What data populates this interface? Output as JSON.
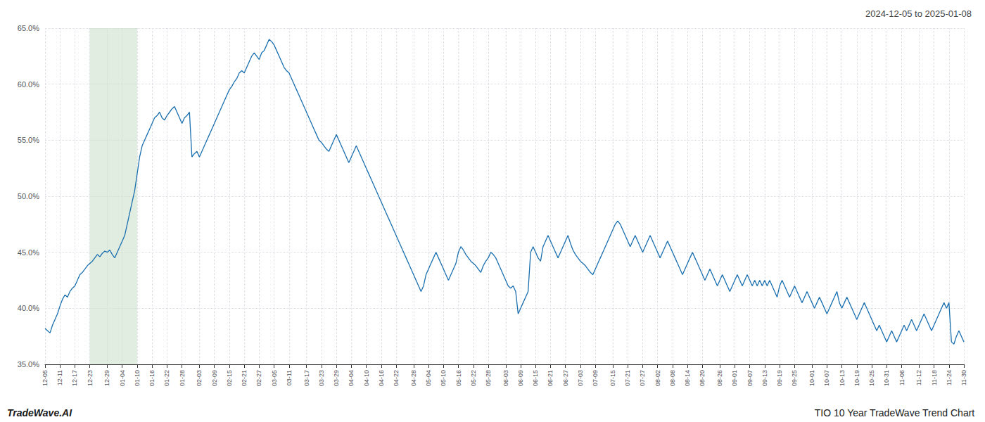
{
  "chart_data": {
    "type": "line",
    "title": "2024-12-05 to 2025-01-08",
    "footer_left": "TradeWave.AI",
    "footer_right": "TIO 10 Year TradeWave Trend Chart",
    "color": "#1a6faf",
    "grid": true,
    "ylim": [
      35.0,
      65.0
    ],
    "yticks": [
      {
        "value": 35,
        "label": "35.0%"
      },
      {
        "value": 40,
        "label": "40.0%"
      },
      {
        "value": 45,
        "label": "45.0%"
      },
      {
        "value": 50,
        "label": "50.0%"
      },
      {
        "value": 55,
        "label": "55.0%"
      },
      {
        "value": 60,
        "label": "60.0%"
      },
      {
        "value": 65,
        "label": "65.0%"
      }
    ],
    "shaded_range": {
      "from": "12-23",
      "to": "01-10",
      "color": "#c8dfc8"
    },
    "categories": [
      "12-05",
      null,
      null,
      null,
      null,
      null,
      "12-11",
      null,
      null,
      null,
      null,
      null,
      "12-17",
      null,
      null,
      null,
      null,
      null,
      "12-23",
      null,
      null,
      null,
      null,
      null,
      null,
      "12-29",
      null,
      null,
      null,
      null,
      null,
      "01-04",
      null,
      null,
      null,
      null,
      null,
      "01-10",
      null,
      null,
      null,
      null,
      null,
      "01-16",
      null,
      null,
      null,
      null,
      null,
      "01-22",
      null,
      null,
      null,
      null,
      null,
      "01-28",
      null,
      null,
      null,
      null,
      null,
      null,
      "02-03",
      null,
      null,
      null,
      null,
      null,
      "02-09",
      null,
      null,
      null,
      null,
      null,
      "02-15",
      null,
      null,
      null,
      null,
      null,
      "02-21",
      null,
      null,
      null,
      null,
      null,
      "02-27",
      null,
      null,
      null,
      null,
      null,
      "03-05",
      null,
      null,
      null,
      null,
      null,
      "03-11",
      null,
      null,
      null,
      null,
      null,
      null,
      "03-17",
      null,
      null,
      null,
      null,
      null,
      "03-23",
      null,
      null,
      null,
      null,
      null,
      "03-29",
      null,
      null,
      null,
      null,
      null,
      "04-04",
      null,
      null,
      null,
      null,
      null,
      "04-10",
      null,
      null,
      null,
      null,
      null,
      "04-16",
      null,
      null,
      null,
      null,
      null,
      "04-22",
      null,
      null,
      null,
      null,
      null,
      null,
      "04-28",
      null,
      null,
      null,
      null,
      null,
      "05-04",
      null,
      null,
      null,
      null,
      null,
      "05-10",
      null,
      null,
      null,
      null,
      null,
      "05-16",
      null,
      null,
      null,
      null,
      null,
      "05-22",
      null,
      null,
      null,
      null,
      null,
      "05-28",
      null,
      null,
      null,
      null,
      null,
      null,
      "06-03",
      null,
      null,
      null,
      null,
      null,
      "06-09",
      null,
      null,
      null,
      null,
      null,
      "06-15",
      null,
      null,
      null,
      null,
      null,
      "06-21",
      null,
      null,
      null,
      null,
      null,
      "06-27",
      null,
      null,
      null,
      null,
      null,
      "07-03",
      null,
      null,
      null,
      null,
      null,
      "07-09",
      null,
      null,
      null,
      null,
      null,
      null,
      "07-15",
      null,
      null,
      null,
      null,
      null,
      "07-21",
      null,
      null,
      null,
      null,
      null,
      "07-27",
      null,
      null,
      null,
      null,
      null,
      "08-02",
      null,
      null,
      null,
      null,
      null,
      "08-08",
      null,
      null,
      null,
      null,
      null,
      "08-14",
      null,
      null,
      null,
      null,
      null,
      "08-20",
      null,
      null,
      null,
      null,
      null,
      null,
      "08-26",
      null,
      null,
      null,
      null,
      null,
      "09-01",
      null,
      null,
      null,
      null,
      null,
      "09-07",
      null,
      null,
      null,
      null,
      null,
      "09-13",
      null,
      null,
      null,
      null,
      null,
      "09-19",
      null,
      null,
      null,
      null,
      null,
      "09-25",
      null,
      null,
      null,
      null,
      null,
      null,
      "10-01",
      null,
      null,
      null,
      null,
      null,
      "10-07",
      null,
      null,
      null,
      null,
      null,
      "10-13",
      null,
      null,
      null,
      null,
      null,
      "10-19",
      null,
      null,
      null,
      null,
      null,
      "10-25",
      null,
      null,
      null,
      null,
      null,
      "10-31",
      null,
      null,
      null,
      null,
      null,
      "11-06",
      null,
      null,
      null,
      null,
      null,
      null,
      "11-12",
      null,
      null,
      null,
      null,
      null,
      "11-18",
      null,
      null,
      null,
      null,
      null,
      "11-24",
      null,
      null,
      null,
      null,
      null,
      "11-30"
    ],
    "values": [
      38.2,
      38.0,
      37.8,
      38.5,
      39.0,
      39.5,
      40.2,
      40.8,
      41.2,
      41.0,
      41.5,
      41.8,
      42.0,
      42.5,
      43.0,
      43.2,
      43.5,
      43.8,
      44.0,
      44.2,
      44.5,
      44.8,
      44.6,
      44.9,
      45.1,
      45.0,
      45.2,
      44.8,
      44.5,
      45.0,
      45.5,
      46.0,
      46.5,
      47.5,
      48.5,
      49.5,
      50.5,
      52.0,
      53.5,
      54.5,
      55.0,
      55.5,
      56.0,
      56.5,
      57.0,
      57.2,
      57.5,
      57.0,
      56.8,
      57.2,
      57.5,
      57.8,
      58.0,
      57.5,
      57.0,
      56.5,
      57.0,
      57.2,
      57.5,
      53.5,
      53.8,
      54.0,
      53.5,
      54.0,
      54.5,
      55.0,
      55.5,
      56.0,
      56.5,
      57.0,
      57.5,
      58.0,
      58.5,
      59.0,
      59.5,
      59.8,
      60.2,
      60.5,
      61.0,
      61.2,
      61.0,
      61.5,
      62.0,
      62.5,
      62.8,
      62.5,
      62.2,
      62.8,
      63.0,
      63.5,
      64.0,
      63.8,
      63.5,
      63.0,
      62.5,
      62.0,
      61.5,
      61.2,
      61.0,
      60.5,
      60.0,
      59.5,
      59.0,
      58.5,
      58.0,
      57.5,
      57.0,
      56.5,
      56.0,
      55.5,
      55.0,
      54.8,
      54.5,
      54.2,
      54.0,
      54.5,
      55.0,
      55.5,
      55.0,
      54.5,
      54.0,
      53.5,
      53.0,
      53.5,
      54.0,
      54.5,
      54.0,
      53.5,
      53.0,
      52.5,
      52.0,
      51.5,
      51.0,
      50.5,
      50.0,
      49.5,
      49.0,
      48.5,
      48.0,
      47.5,
      47.0,
      46.5,
      46.0,
      45.5,
      45.0,
      44.5,
      44.0,
      43.5,
      43.0,
      42.5,
      42.0,
      41.5,
      42.0,
      43.0,
      43.5,
      44.0,
      44.5,
      45.0,
      44.5,
      44.0,
      43.5,
      43.0,
      42.5,
      43.0,
      43.5,
      44.0,
      45.0,
      45.5,
      45.2,
      44.8,
      44.5,
      44.2,
      44.0,
      43.8,
      43.5,
      43.2,
      43.8,
      44.2,
      44.5,
      45.0,
      44.8,
      44.5,
      44.0,
      43.5,
      43.0,
      42.5,
      42.0,
      41.8,
      42.0,
      41.5,
      39.5,
      40.0,
      40.5,
      41.0,
      41.5,
      45.0,
      45.5,
      45.0,
      44.5,
      44.2,
      45.5,
      46.0,
      46.5,
      46.0,
      45.5,
      45.0,
      44.5,
      45.0,
      45.5,
      46.0,
      46.5,
      45.8,
      45.2,
      44.8,
      44.5,
      44.2,
      44.0,
      43.8,
      43.5,
      43.2,
      43.0,
      43.5,
      44.0,
      44.5,
      45.0,
      45.5,
      46.0,
      46.5,
      47.0,
      47.5,
      47.8,
      47.5,
      47.0,
      46.5,
      46.0,
      45.5,
      46.0,
      46.5,
      46.0,
      45.5,
      45.0,
      45.5,
      46.0,
      46.5,
      46.0,
      45.5,
      45.0,
      44.5,
      45.0,
      45.5,
      46.0,
      45.5,
      45.0,
      44.5,
      44.0,
      43.5,
      43.0,
      43.5,
      44.0,
      44.5,
      45.0,
      44.5,
      44.0,
      43.5,
      43.0,
      42.5,
      43.0,
      43.5,
      43.0,
      42.5,
      42.0,
      42.5,
      43.0,
      42.5,
      42.0,
      41.5,
      42.0,
      42.5,
      43.0,
      42.5,
      42.0,
      42.5,
      43.0,
      42.5,
      42.0,
      42.5,
      42.0,
      42.5,
      42.0,
      42.5,
      42.0,
      42.5,
      42.0,
      41.5,
      41.0,
      42.0,
      42.5,
      42.0,
      41.5,
      41.0,
      41.5,
      42.0,
      41.5,
      41.0,
      40.5,
      41.0,
      41.5,
      41.0,
      40.5,
      40.0,
      40.5,
      41.0,
      40.5,
      40.0,
      39.5,
      40.0,
      40.5,
      41.0,
      41.5,
      40.5,
      40.0,
      40.5,
      41.0,
      40.5,
      40.0,
      39.5,
      39.0,
      39.5,
      40.0,
      40.5,
      40.0,
      39.5,
      39.0,
      38.5,
      38.0,
      38.5,
      38.0,
      37.5,
      37.0,
      37.5,
      38.0,
      37.5,
      37.0,
      37.5,
      38.0,
      38.5,
      38.0,
      38.5,
      39.0,
      38.5,
      38.0,
      38.5,
      39.0,
      39.5,
      39.0,
      38.5,
      38.0,
      38.5,
      39.0,
      39.5,
      40.0,
      40.5,
      40.0,
      40.5,
      37.0,
      36.8,
      37.5,
      38.0,
      37.5,
      37.0
    ]
  }
}
